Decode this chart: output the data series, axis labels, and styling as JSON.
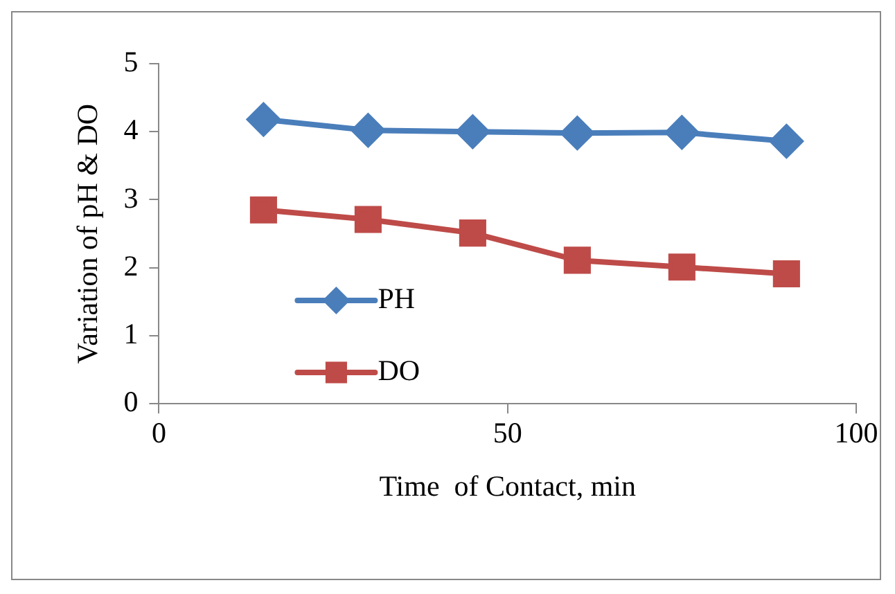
{
  "chart_data": {
    "type": "line",
    "xlabel": "Time  of Contact, min",
    "ylabel": "Variation of pH & DO",
    "x": [
      15,
      30,
      45,
      60,
      75,
      90
    ],
    "series": [
      {
        "name": "PH",
        "color": "#4a7ebb",
        "values": [
          4.18,
          4.02,
          4.0,
          3.98,
          3.99,
          3.86
        ],
        "marker": "diamond"
      },
      {
        "name": "DO",
        "color": "#be4b48",
        "values": [
          2.85,
          2.71,
          2.51,
          2.11,
          2.01,
          1.91
        ],
        "marker": "square"
      }
    ],
    "xlim": [
      0,
      100
    ],
    "xticks": [
      0,
      50,
      100
    ],
    "ylim": [
      0,
      5
    ],
    "yticks": [
      0,
      1,
      2,
      3,
      4,
      5
    ],
    "grid": false,
    "legend": "center left"
  }
}
